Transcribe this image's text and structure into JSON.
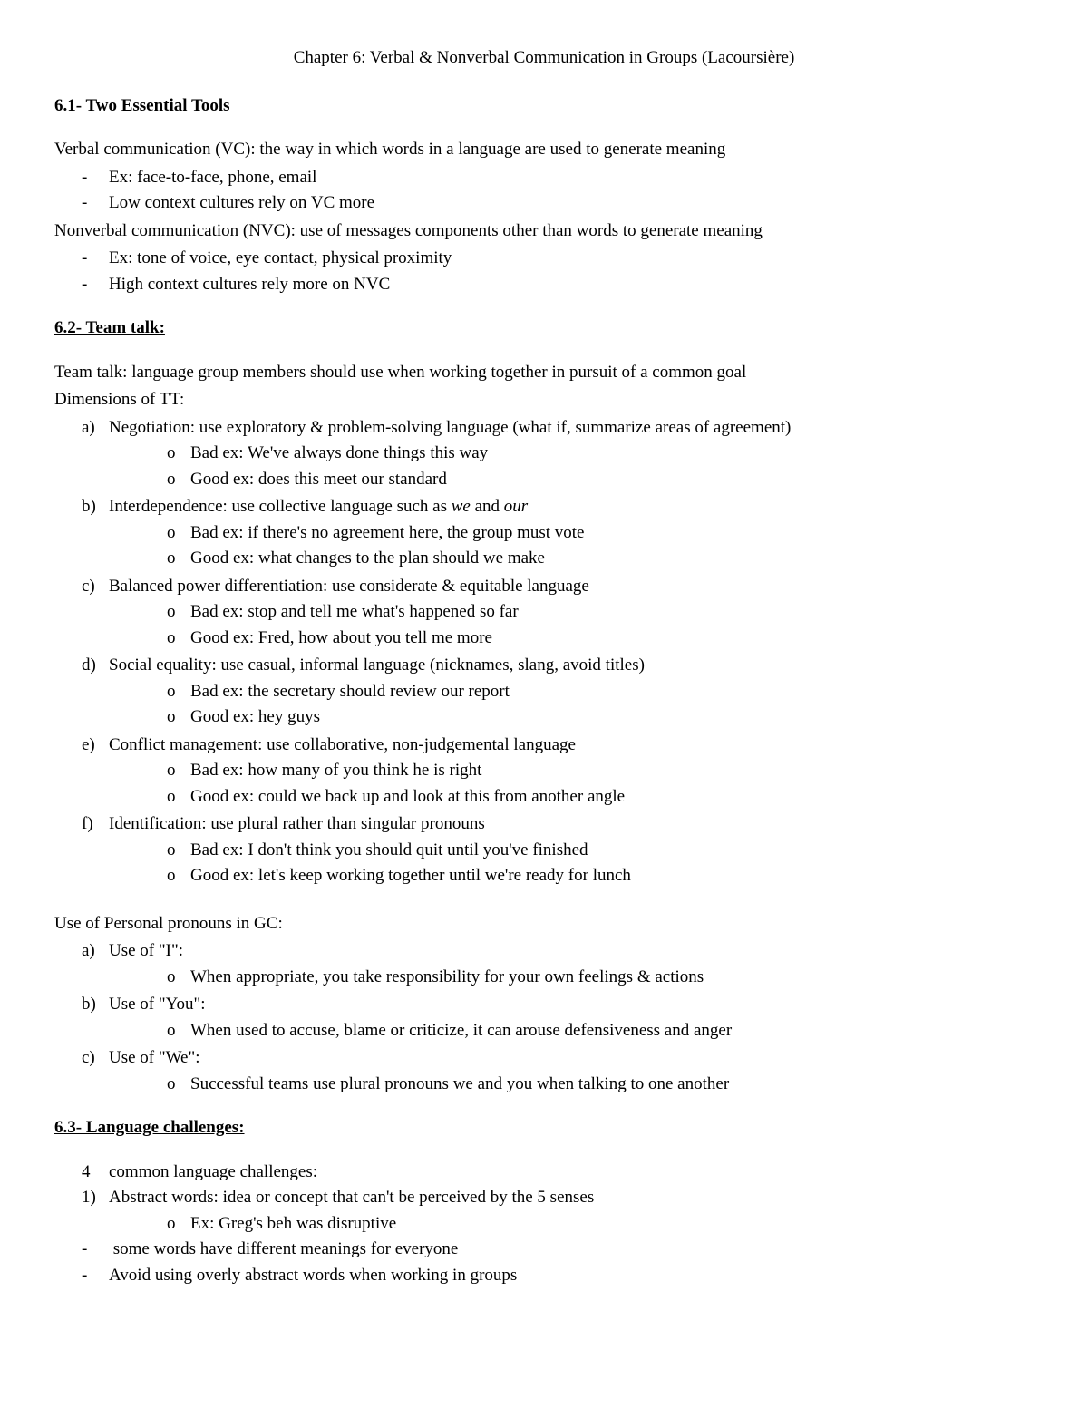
{
  "title": "Chapter 6: Verbal & Nonverbal Communication in Groups (Lacoursière)",
  "s61": {
    "heading": "6.1- Two Essential Tools",
    "vc_def": "Verbal communication (VC): the way in which words in a language are used to generate meaning",
    "vc_b1": "Ex: face-to-face, phone, email",
    "vc_b2": "Low context cultures rely on VC more",
    "nvc_def": "Nonverbal communication (NVC): use of messages components other than words to generate meaning",
    "nvc_b1": "Ex: tone of voice, eye contact, physical proximity",
    "nvc_b2": "High context cultures rely more on NVC"
  },
  "s62": {
    "heading": "6.2- Team talk:",
    "tt_def": "Team talk: language group members should use when working together in pursuit of a common goal",
    "dim_intro": "Dimensions of TT:",
    "a": {
      "label": "a)",
      "text": "Negotiation: use exploratory & problem-solving language (what if, summarize areas of agreement)",
      "bad": "Bad ex: We've always done things this way",
      "good": "Good ex: does this meet our standard"
    },
    "b": {
      "label": "b)",
      "text_pre": "Interdependence: use collective language such as ",
      "we": "we",
      "and": " and ",
      "our": "our",
      "bad": "Bad ex: if there's no agreement here, the group must vote",
      "good": "Good ex: what changes to the plan should we make"
    },
    "c": {
      "label": "c)",
      "text": "Balanced power differentiation: use considerate & equitable language",
      "bad": "Bad ex: stop and tell me what's happened so far",
      "good": "Good ex: Fred, how about you tell me more"
    },
    "d": {
      "label": "d)",
      "text": "Social equality: use casual, informal language (nicknames, slang, avoid titles)",
      "bad": "Bad ex: the secretary should review our report",
      "good": "Good ex: hey guys"
    },
    "e": {
      "label": "e)",
      "text": "Conflict management: use collaborative, non-judgemental language",
      "bad": "Bad ex: how many of you think he is right",
      "good": "Good ex: could we back up and look at this from another angle"
    },
    "f": {
      "label": "f)",
      "text": "Identification: use plural rather than singular pronouns",
      "bad": "Bad ex: I don't think you should quit until you've finished",
      "good": "Good ex: let's keep working together until we're ready for lunch"
    },
    "pp_intro": "Use of Personal pronouns in GC:",
    "pa": {
      "label": "a)",
      "text": "Use of \"I\":",
      "sub": "When appropriate, you take responsibility for your own feelings & actions"
    },
    "pb": {
      "label": "b)",
      "text": "Use of \"You\":",
      "sub": "When used to accuse, blame or criticize, it can arouse defensiveness and anger"
    },
    "pc": {
      "label": "c)",
      "text": "Use of \"We\":",
      "sub": "Successful teams use plural pronouns we and you when talking to one another"
    }
  },
  "s63": {
    "heading": "6.3- Language challenges:",
    "intro_marker": "4",
    "intro_text": "common language challenges:",
    "n1_marker": "1)",
    "n1_text": "Abstract words: idea or concept that can't be perceived by the 5 senses",
    "n1_ex": "Ex: Greg's beh was disruptive",
    "d1": " some words have different meanings for everyone",
    "d2": "Avoid using overly abstract words when working in groups"
  }
}
